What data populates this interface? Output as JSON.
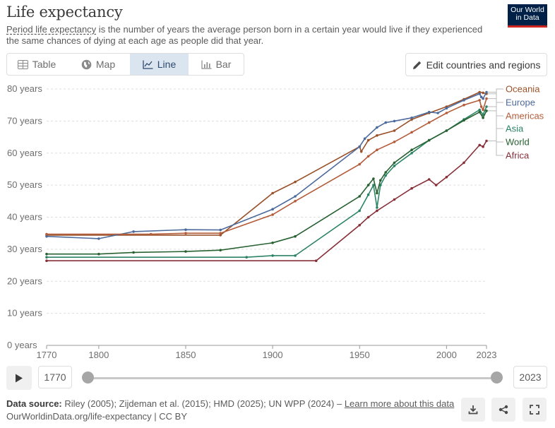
{
  "header": {
    "title": "Life expectancy",
    "subtitle_link": "Period life expectancy",
    "subtitle_rest": " is the number of years the average person born in a certain year would live if they experienced the same chances of dying at each age as people did that year.",
    "logo_line1": "Our World",
    "logo_line2": "in Data"
  },
  "tabs": [
    {
      "label": "Table",
      "icon": "table-icon"
    },
    {
      "label": "Map",
      "icon": "globe-icon"
    },
    {
      "label": "Line",
      "icon": "line-chart-icon",
      "active": true
    },
    {
      "label": "Bar",
      "icon": "bar-chart-icon"
    }
  ],
  "edit_button": {
    "label": "Edit countries and regions",
    "icon": "pencil-icon"
  },
  "timeline": {
    "start": "1770",
    "end": "2023"
  },
  "footer": {
    "source_label": "Data source:",
    "source_text": "Riley (2005); Zijdeman et al. (2015); HMD (2025); UN WPP (2024) –",
    "learn_more": "Learn more about this data",
    "url_line": "OurWorldinData.org/life-expectancy | CC BY"
  },
  "chart_data": {
    "type": "line",
    "xlim": [
      1770,
      2023
    ],
    "ylim": [
      0,
      80
    ],
    "ytick_values": [
      0,
      10,
      20,
      30,
      40,
      50,
      60,
      70,
      80
    ],
    "ytick_labels": [
      "0 years",
      "10 years",
      "20 years",
      "30 years",
      "40 years",
      "50 years",
      "60 years",
      "70 years",
      "80 years"
    ],
    "xtick_values": [
      1770,
      1800,
      1850,
      1900,
      1950,
      2000,
      2023
    ],
    "xtick_labels": [
      "1770",
      "1800",
      "1850",
      "1900",
      "1950",
      "2000",
      "2023"
    ],
    "grid": "horizontal dashed",
    "legend": "right, labels at line ends",
    "series": [
      {
        "name": "Oceania",
        "color": "#9a5129",
        "points": [
          [
            1770,
            34.4
          ],
          [
            1870,
            34.4
          ],
          [
            1900,
            47.5
          ],
          [
            1913,
            51
          ],
          [
            1950,
            62
          ],
          [
            1951,
            60.5
          ],
          [
            1955,
            64
          ],
          [
            1960,
            65.5
          ],
          [
            1970,
            67
          ],
          [
            1980,
            70.5
          ],
          [
            1990,
            72.5
          ],
          [
            2000,
            74.5
          ],
          [
            2010,
            76.8
          ],
          [
            2019,
            79
          ],
          [
            2021,
            78.8
          ],
          [
            2023,
            78.5
          ]
        ]
      },
      {
        "name": "Europe",
        "color": "#4c6a9c",
        "points": [
          [
            1770,
            34
          ],
          [
            1800,
            33.3
          ],
          [
            1820,
            35.5
          ],
          [
            1850,
            36.1
          ],
          [
            1870,
            36
          ],
          [
            1900,
            42.5
          ],
          [
            1913,
            46.5
          ],
          [
            1950,
            62
          ],
          [
            1953,
            64.5
          ],
          [
            1960,
            68
          ],
          [
            1965,
            69.5
          ],
          [
            1970,
            70
          ],
          [
            1980,
            71
          ],
          [
            1990,
            72.8
          ],
          [
            1995,
            72.5
          ],
          [
            2000,
            74
          ],
          [
            2010,
            76.5
          ],
          [
            2019,
            78.5
          ],
          [
            2020,
            77.5
          ],
          [
            2021,
            77
          ],
          [
            2023,
            79
          ]
        ]
      },
      {
        "name": "Americas",
        "color": "#b45c3a",
        "points": [
          [
            1770,
            34.7
          ],
          [
            1830,
            34.7
          ],
          [
            1850,
            35
          ],
          [
            1870,
            35
          ],
          [
            1900,
            40.8
          ],
          [
            1913,
            45
          ],
          [
            1950,
            56.5
          ],
          [
            1955,
            59
          ],
          [
            1960,
            61
          ],
          [
            1970,
            63.5
          ],
          [
            1980,
            66.5
          ],
          [
            1990,
            69.5
          ],
          [
            2000,
            72.5
          ],
          [
            2010,
            75
          ],
          [
            2019,
            76.5
          ],
          [
            2020,
            74.5
          ],
          [
            2021,
            73.5
          ],
          [
            2023,
            77
          ]
        ]
      },
      {
        "name": "Asia",
        "color": "#2c8465",
        "points": [
          [
            1770,
            27.5
          ],
          [
            1885,
            27.5
          ],
          [
            1900,
            28
          ],
          [
            1913,
            28
          ],
          [
            1950,
            42
          ],
          [
            1955,
            47
          ],
          [
            1958,
            50
          ],
          [
            1960,
            43
          ],
          [
            1962,
            50
          ],
          [
            1965,
            53
          ],
          [
            1970,
            56
          ],
          [
            1980,
            60
          ],
          [
            1990,
            64
          ],
          [
            2000,
            67
          ],
          [
            2010,
            70.5
          ],
          [
            2019,
            73.5
          ],
          [
            2021,
            72
          ],
          [
            2023,
            74.5
          ]
        ]
      },
      {
        "name": "World",
        "color": "#286232",
        "points": [
          [
            1770,
            28.5
          ],
          [
            1800,
            28.5
          ],
          [
            1820,
            29
          ],
          [
            1850,
            29.3
          ],
          [
            1870,
            29.7
          ],
          [
            1900,
            32
          ],
          [
            1913,
            34
          ],
          [
            1950,
            46.5
          ],
          [
            1955,
            50
          ],
          [
            1958,
            52
          ],
          [
            1960,
            47.5
          ],
          [
            1962,
            51.5
          ],
          [
            1965,
            54
          ],
          [
            1970,
            57
          ],
          [
            1980,
            61
          ],
          [
            1990,
            64
          ],
          [
            2000,
            67
          ],
          [
            2010,
            70.2
          ],
          [
            2019,
            72.8
          ],
          [
            2021,
            71
          ],
          [
            2023,
            73.2
          ]
        ]
      },
      {
        "name": "Africa",
        "color": "#883039",
        "points": [
          [
            1770,
            26.4
          ],
          [
            1925,
            26.4
          ],
          [
            1950,
            37.5
          ],
          [
            1955,
            40
          ],
          [
            1960,
            42
          ],
          [
            1970,
            45.5
          ],
          [
            1980,
            49
          ],
          [
            1990,
            51.8
          ],
          [
            1994,
            50
          ],
          [
            2000,
            52.5
          ],
          [
            2010,
            57
          ],
          [
            2019,
            62.5
          ],
          [
            2021,
            62
          ],
          [
            2023,
            63.8
          ]
        ]
      }
    ],
    "label_offsets_y": {
      "Oceania": 0,
      "Europe": 0,
      "Americas": 0,
      "Asia": 0,
      "World": 0,
      "Africa": 0
    }
  }
}
